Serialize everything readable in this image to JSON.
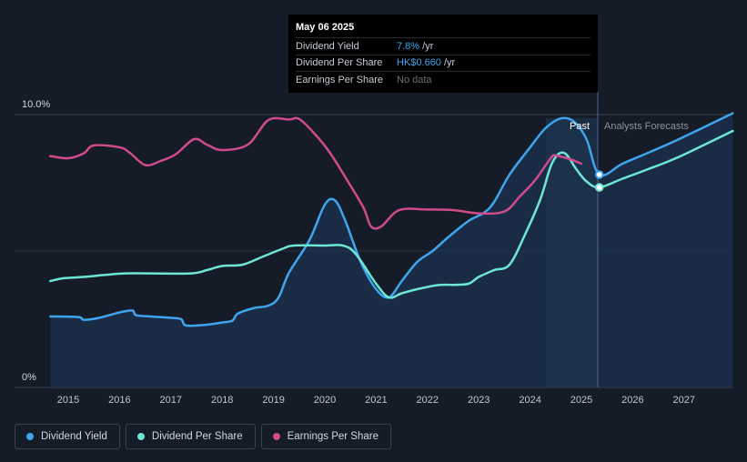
{
  "tooltip": {
    "date": "May 06 2025",
    "rows": [
      {
        "label": "Dividend Yield",
        "value": "7.8%",
        "unit": " /yr"
      },
      {
        "label": "Dividend Per Share",
        "value": "HK$0.660",
        "unit": " /yr"
      },
      {
        "label": "Earnings Per Share",
        "value": "No data",
        "unit": ""
      }
    ]
  },
  "legend": [
    {
      "label": "Dividend Yield",
      "color": "#3ea6ee"
    },
    {
      "label": "Dividend Per Share",
      "color": "#6ee6d4"
    },
    {
      "label": "Earnings Per Share",
      "color": "#d04b8a"
    }
  ],
  "chart_data": {
    "type": "line",
    "y_tick_labels": [
      "10.0%",
      "0%"
    ],
    "ylim": [
      0,
      10
    ],
    "xlim": [
      2014.35,
      2027.95
    ],
    "x_ticks": [
      2015,
      2016,
      2017,
      2018,
      2019,
      2020,
      2021,
      2022,
      2023,
      2024,
      2025,
      2026,
      2027
    ],
    "x_tick_labels": [
      "2015",
      "2016",
      "2017",
      "2018",
      "2019",
      "2020",
      "2021",
      "2022",
      "2023",
      "2024",
      "2025",
      "2026",
      "2027"
    ],
    "past_label": "Past",
    "forecast_label": "Analysts Forecasts",
    "divider_x": 2025.35,
    "highlight_start_x": 2024.3,
    "series": [
      {
        "name": "Dividend Yield",
        "color": "#3ea6ee",
        "area": true,
        "points": [
          [
            2014.65,
            2.6
          ],
          [
            2015.2,
            2.58
          ],
          [
            2015.3,
            2.48
          ],
          [
            2015.6,
            2.55
          ],
          [
            2016.0,
            2.75
          ],
          [
            2016.25,
            2.82
          ],
          [
            2016.32,
            2.65
          ],
          [
            2016.6,
            2.6
          ],
          [
            2017.0,
            2.55
          ],
          [
            2017.2,
            2.5
          ],
          [
            2017.3,
            2.27
          ],
          [
            2017.7,
            2.3
          ],
          [
            2018.0,
            2.38
          ],
          [
            2018.2,
            2.45
          ],
          [
            2018.3,
            2.7
          ],
          [
            2018.6,
            2.9
          ],
          [
            2018.9,
            3.0
          ],
          [
            2019.1,
            3.3
          ],
          [
            2019.3,
            4.2
          ],
          [
            2019.7,
            5.4
          ],
          [
            2020.0,
            6.7
          ],
          [
            2020.2,
            6.85
          ],
          [
            2020.4,
            6.1
          ],
          [
            2020.7,
            4.6
          ],
          [
            2021.0,
            3.6
          ],
          [
            2021.25,
            3.3
          ],
          [
            2021.5,
            3.9
          ],
          [
            2021.8,
            4.6
          ],
          [
            2022.1,
            5.0
          ],
          [
            2022.4,
            5.5
          ],
          [
            2022.8,
            6.1
          ],
          [
            2023.1,
            6.4
          ],
          [
            2023.3,
            6.8
          ],
          [
            2023.6,
            7.8
          ],
          [
            2024.0,
            8.8
          ],
          [
            2024.3,
            9.5
          ],
          [
            2024.6,
            9.86
          ],
          [
            2024.85,
            9.75
          ],
          [
            2025.1,
            9.1
          ],
          [
            2025.35,
            7.8
          ],
          [
            2025.8,
            8.2
          ],
          [
            2026.3,
            8.6
          ],
          [
            2026.9,
            9.1
          ],
          [
            2027.95,
            10.05
          ]
        ]
      },
      {
        "name": "Dividend Per Share",
        "color": "#6ee6d4",
        "area": false,
        "points": [
          [
            2014.65,
            3.9
          ],
          [
            2014.9,
            4.0
          ],
          [
            2015.3,
            4.05
          ],
          [
            2015.7,
            4.12
          ],
          [
            2016.1,
            4.18
          ],
          [
            2016.6,
            4.18
          ],
          [
            2017.4,
            4.18
          ],
          [
            2017.7,
            4.3
          ],
          [
            2018.0,
            4.45
          ],
          [
            2018.4,
            4.5
          ],
          [
            2018.8,
            4.8
          ],
          [
            2019.2,
            5.1
          ],
          [
            2019.4,
            5.2
          ],
          [
            2020.0,
            5.2
          ],
          [
            2020.35,
            5.2
          ],
          [
            2020.6,
            4.9
          ],
          [
            2021.0,
            3.8
          ],
          [
            2021.25,
            3.3
          ],
          [
            2021.5,
            3.45
          ],
          [
            2021.8,
            3.6
          ],
          [
            2022.2,
            3.75
          ],
          [
            2022.5,
            3.76
          ],
          [
            2022.8,
            3.8
          ],
          [
            2023.0,
            4.05
          ],
          [
            2023.3,
            4.3
          ],
          [
            2023.6,
            4.5
          ],
          [
            2023.9,
            5.6
          ],
          [
            2024.2,
            6.9
          ],
          [
            2024.4,
            8.1
          ],
          [
            2024.55,
            8.55
          ],
          [
            2024.7,
            8.55
          ],
          [
            2024.9,
            8.0
          ],
          [
            2025.1,
            7.55
          ],
          [
            2025.35,
            7.33
          ],
          [
            2025.8,
            7.65
          ],
          [
            2026.3,
            8.0
          ],
          [
            2026.9,
            8.45
          ],
          [
            2027.95,
            9.4
          ]
        ]
      },
      {
        "name": "Earnings Per Share",
        "color": "#d04b8a",
        "area": false,
        "points": [
          [
            2014.65,
            8.48
          ],
          [
            2015.0,
            8.4
          ],
          [
            2015.3,
            8.58
          ],
          [
            2015.5,
            8.87
          ],
          [
            2016.0,
            8.8
          ],
          [
            2016.2,
            8.6
          ],
          [
            2016.5,
            8.15
          ],
          [
            2016.8,
            8.3
          ],
          [
            2017.1,
            8.55
          ],
          [
            2017.45,
            9.1
          ],
          [
            2017.7,
            8.9
          ],
          [
            2018.0,
            8.7
          ],
          [
            2018.5,
            8.9
          ],
          [
            2018.9,
            9.8
          ],
          [
            2019.3,
            9.82
          ],
          [
            2019.5,
            9.84
          ],
          [
            2019.8,
            9.3
          ],
          [
            2020.1,
            8.6
          ],
          [
            2020.4,
            7.7
          ],
          [
            2020.75,
            6.6
          ],
          [
            2020.9,
            5.9
          ],
          [
            2021.1,
            5.9
          ],
          [
            2021.45,
            6.5
          ],
          [
            2022.0,
            6.52
          ],
          [
            2022.5,
            6.5
          ],
          [
            2023.0,
            6.38
          ],
          [
            2023.5,
            6.45
          ],
          [
            2023.8,
            7.0
          ],
          [
            2024.1,
            7.6
          ],
          [
            2024.4,
            8.4
          ],
          [
            2024.5,
            8.5
          ],
          [
            2024.8,
            8.35
          ],
          [
            2025.0,
            8.2
          ]
        ]
      }
    ]
  }
}
